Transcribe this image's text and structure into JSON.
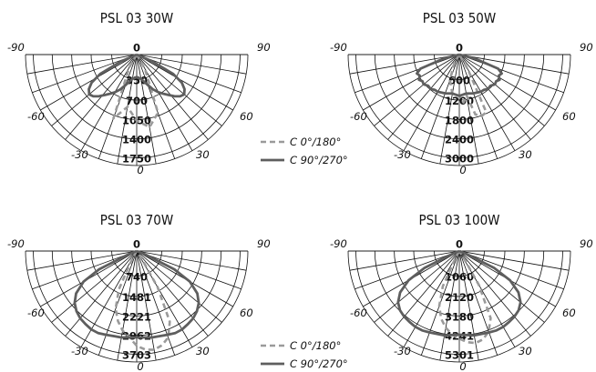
{
  "chart_data": [
    {
      "type": "polar",
      "title": "PSL 03 30W",
      "angle_labels": [
        "-90",
        "-60",
        "-30",
        "0",
        "30",
        "60",
        "90",
        "0"
      ],
      "rings": [
        350,
        700,
        1050,
        1400,
        1750
      ],
      "rmax": 1750,
      "ring_labels": [
        "0",
        "350",
        "700",
        "1050",
        "1400",
        "1750"
      ],
      "series": [
        {
          "name": "C 0°/180°",
          "angles": [
            -30,
            -20,
            -10,
            0,
            10,
            20,
            30
          ],
          "values": [
            250,
            1150,
            900,
            1120,
            1250,
            1050,
            280
          ]
        },
        {
          "name": "C 90°/270°",
          "angles": [
            -66,
            -62,
            -58,
            -54,
            -50,
            -46,
            -42,
            -38,
            -34,
            -30,
            -25,
            -20,
            -10,
            0,
            10,
            20,
            25,
            30,
            34,
            38,
            42,
            46,
            50,
            54,
            58,
            62,
            66
          ],
          "values": [
            300,
            700,
            900,
            1000,
            1050,
            1020,
            950,
            870,
            800,
            740,
            650,
            550,
            420,
            380,
            420,
            550,
            650,
            740,
            800,
            870,
            950,
            1020,
            1050,
            1000,
            900,
            700,
            300
          ]
        }
      ]
    },
    {
      "type": "polar",
      "title": "PSL 03 50W",
      "angle_labels": [
        "-90",
        "-60",
        "-30",
        "0",
        "30",
        "60",
        "90",
        "0"
      ],
      "rings": [
        600,
        1200,
        1800,
        2400,
        3000
      ],
      "rmax": 3000,
      "ring_labels": [
        "0",
        "600",
        "1200",
        "1800",
        "2400",
        "3000"
      ],
      "series": [
        {
          "name": "C 0°/180°",
          "angles": [
            -30,
            -20,
            -10,
            0,
            5,
            10,
            15,
            20,
            25,
            30
          ],
          "values": [
            300,
            800,
            1150,
            1200,
            1400,
            1200,
            1800,
            1900,
            1850,
            500
          ]
        },
        {
          "name": "C 90°/270°",
          "angles": [
            -75,
            -70,
            -66,
            -62,
            -58,
            -54,
            -50,
            -45,
            -40,
            -35,
            -30,
            -20,
            -10,
            0,
            10,
            20,
            30,
            35,
            40,
            45,
            50,
            54,
            58,
            62,
            66,
            70,
            75
          ],
          "values": [
            500,
            1200,
            1350,
            1300,
            1380,
            1320,
            1350,
            1280,
            1300,
            1250,
            1250,
            1200,
            1150,
            1200,
            1150,
            1200,
            1250,
            1250,
            1300,
            1280,
            1350,
            1320,
            1380,
            1300,
            1350,
            1200,
            500
          ]
        }
      ]
    },
    {
      "type": "polar",
      "title": "PSL 03 70W",
      "angle_labels": [
        "-90",
        "-60",
        "-30",
        "0",
        "30",
        "60",
        "90",
        "0"
      ],
      "rings": [
        740,
        1481,
        2221,
        2962,
        3703
      ],
      "rmax": 3703,
      "ring_labels": [
        "0",
        "740",
        "1481",
        "2221",
        "2962",
        "3703"
      ],
      "series": [
        {
          "name": "C 0°/180°",
          "angles": [
            -30,
            -25,
            -20,
            -15,
            -10,
            -5,
            0,
            5,
            10,
            15,
            20,
            25,
            30,
            33
          ],
          "values": [
            300,
            1500,
            2200,
            2600,
            2900,
            3100,
            3400,
            3550,
            3600,
            3500,
            3300,
            2800,
            1500,
            300
          ]
        },
        {
          "name": "C 90°/270°",
          "angles": [
            -68,
            -64,
            -60,
            -55,
            -50,
            -45,
            -40,
            -35,
            -30,
            -25,
            -20,
            -10,
            0,
            10,
            20,
            25,
            30,
            35,
            40,
            45,
            50,
            55,
            60,
            64,
            68
          ],
          "values": [
            300,
            1500,
            2200,
            2650,
            2900,
            3050,
            3150,
            3200,
            3250,
            3250,
            3200,
            3150,
            3100,
            3150,
            3200,
            3250,
            3250,
            3200,
            3150,
            3050,
            2900,
            2650,
            2200,
            1500,
            300
          ]
        }
      ]
    },
    {
      "type": "polar",
      "title": "PSL 03 100W",
      "angle_labels": [
        "-90",
        "-60",
        "-30",
        "0",
        "30",
        "60",
        "90",
        "0"
      ],
      "rings": [
        1060,
        2120,
        3180,
        4241,
        5301
      ],
      "rmax": 5301,
      "ring_labels": [
        "0",
        "1060",
        "2120",
        "3180",
        "4241",
        "5301"
      ],
      "series": [
        {
          "name": "C 0°/180°",
          "angles": [
            -30,
            -25,
            -20,
            -15,
            -10,
            -5,
            0,
            5,
            10,
            15,
            20,
            25,
            30,
            33
          ],
          "values": [
            300,
            2000,
            3000,
            3600,
            4000,
            4300,
            4500,
            4700,
            4800,
            4700,
            4400,
            3800,
            2000,
            300
          ]
        },
        {
          "name": "C 90°/270°",
          "angles": [
            -68,
            -64,
            -60,
            -55,
            -50,
            -45,
            -40,
            -35,
            -30,
            -25,
            -20,
            -10,
            0,
            10,
            20,
            25,
            30,
            35,
            40,
            45,
            50,
            55,
            60,
            64,
            68
          ],
          "values": [
            300,
            2000,
            3000,
            3700,
            4100,
            4300,
            4400,
            4450,
            4500,
            4500,
            4450,
            4400,
            4300,
            4400,
            4450,
            4500,
            4500,
            4450,
            4400,
            4300,
            4100,
            3700,
            3000,
            2000,
            300
          ]
        }
      ]
    }
  ],
  "legends": [
    {
      "items": [
        {
          "label": "C 0°/180°",
          "style": "dashed",
          "color": "#9a9a9a"
        },
        {
          "label": "C 90°/270°",
          "style": "solid",
          "color": "#5e5e5e"
        }
      ]
    },
    {
      "items": [
        {
          "label": "C 0°/180°",
          "style": "dashed",
          "color": "#9a9a9a"
        },
        {
          "label": "C 90°/270°",
          "style": "solid",
          "color": "#5e5e5e"
        }
      ]
    }
  ],
  "colors": {
    "c0": "#9a9a9a",
    "c90": "#5e5e5e",
    "grid": "#111111"
  }
}
